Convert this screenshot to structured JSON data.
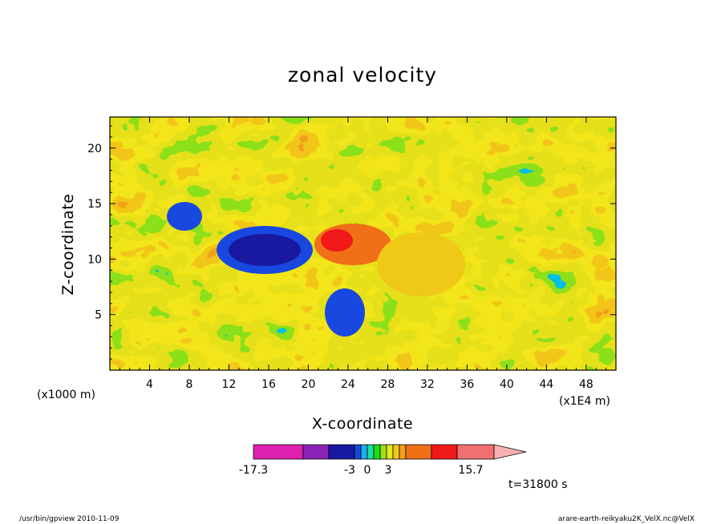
{
  "chart_data": {
    "type": "heatmap",
    "title": "zonal velocity",
    "xlabel": "X-coordinate",
    "ylabel": "Z-coordinate",
    "x_unit_left": "(x1000 m)",
    "x_unit_right": "(x1E4 m)",
    "xlim": [
      0,
      51
    ],
    "ylim": [
      0,
      22.8
    ],
    "x_ticks": [
      "4",
      "8",
      "12",
      "16",
      "20",
      "24",
      "28",
      "32",
      "36",
      "40",
      "44",
      "48"
    ],
    "y_ticks": [
      "5",
      "10",
      "15",
      "20"
    ],
    "colorbar": {
      "colors": [
        "#e020b0",
        "#8a22b8",
        "#1818a0",
        "#1848e0",
        "#18b0f0",
        "#18e0a0",
        "#18e018",
        "#a0e018",
        "#e8e818",
        "#f0c818",
        "#f0a018",
        "#f07018",
        "#f01818",
        "#f07070",
        "#f8b0b0"
      ],
      "labels": [
        "-17.3",
        "-3",
        "0",
        "3",
        "15.7"
      ],
      "label_values": [
        -17.3,
        -3,
        0,
        3,
        15.7
      ]
    },
    "annotation": "t=31800 s"
  },
  "footer": {
    "left": "/usr/bin/gpview   2010-11-09",
    "right": "arare-earth-reikyaku2K_VelX.nc@VelX"
  }
}
